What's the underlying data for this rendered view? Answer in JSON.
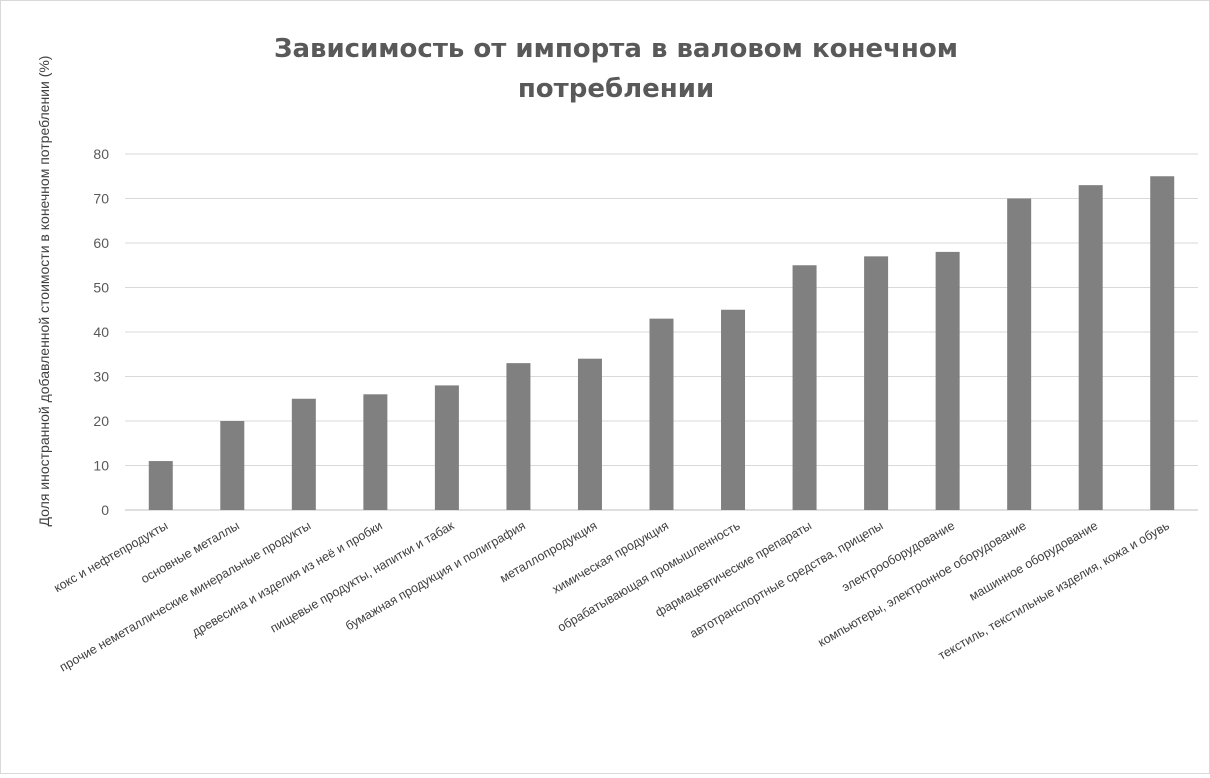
{
  "chart_data": {
    "type": "bar",
    "title_lines": [
      "Зависимость от импорта в валовом конечном",
      "потреблении"
    ],
    "ylabel": "Доля иностранной добавленной стоимости в конечном потреблении (%)",
    "xlabel": "",
    "ylim": [
      0,
      80
    ],
    "yticks": [
      "0",
      "10",
      "20",
      "30",
      "40",
      "50",
      "60",
      "70",
      "80"
    ],
    "grid": true,
    "legend": "none",
    "bar_color": "#808080",
    "grid_color": "#d9d9d9",
    "categories": [
      "кокс и нефтепродукты",
      "основные металлы",
      "прочие неметаллические минеральные продукты",
      "древесина и изделия из неё и пробки",
      "пищевые продукты, напитки и табак",
      "бумажная продукция и полиграфия",
      "металлопродукция",
      "химическая продукция",
      "обрабатывающая промышленность",
      "фармацевтические препараты",
      "автотранспортные средства, прицепы",
      "электрооборудование",
      "компьютеры, электронное оборудование",
      "машинное оборудование",
      "текстиль, текстильные изделия, кожа и обувь"
    ],
    "values": [
      11,
      20,
      25,
      26,
      28,
      33,
      34,
      43,
      45,
      55,
      57,
      58,
      70,
      73,
      75
    ]
  }
}
